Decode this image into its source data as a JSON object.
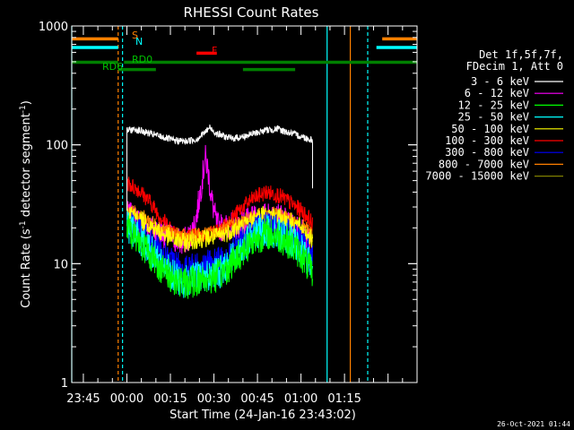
{
  "chart_data": {
    "type": "line",
    "title": "RHESSI Count Rates",
    "xlabel": "Start Time (24-Jan-16 23:43:02)",
    "ylabel_main": "Count Rate (s",
    "ylabel_sup1": "-1",
    "ylabel_mid": " detector segment",
    "ylabel_sup2": "-1",
    "ylabel_end": ")",
    "timestamp": "26-Oct-2021 01:44",
    "y_scale": "log",
    "ylim": [
      1,
      1000
    ],
    "xlim_minutes": [
      -19,
      100
    ],
    "x_tick_labels": [
      {
        "label": "23:45",
        "minute": -15
      },
      {
        "label": "00:00",
        "minute": 0
      },
      {
        "label": "00:15",
        "minute": 15
      },
      {
        "label": "00:30",
        "minute": 30
      },
      {
        "label": "00:45",
        "minute": 45
      },
      {
        "label": "01:00",
        "minute": 60
      },
      {
        "label": "01:15",
        "minute": 75
      }
    ],
    "y_tick_labels": [
      {
        "label": "1",
        "value": 1
      },
      {
        "label": "10",
        "value": 10
      },
      {
        "label": "100",
        "value": 100
      },
      {
        "label": "1000",
        "value": 1000
      }
    ],
    "legend_header": [
      "Det 1f,5f,7f,",
      "FDecim 1, Att 0"
    ],
    "legend_position": "right",
    "series": [
      {
        "name": "3 - 6 keV",
        "color": "#ffffff",
        "points": [
          [
            0,
            132
          ],
          [
            3,
            135
          ],
          [
            8,
            124
          ],
          [
            12,
            117
          ],
          [
            16,
            109
          ],
          [
            20,
            107
          ],
          [
            24,
            111
          ],
          [
            27,
            128
          ],
          [
            28.5,
            140
          ],
          [
            31,
            124
          ],
          [
            36,
            113
          ],
          [
            40,
            117
          ],
          [
            44,
            125
          ],
          [
            48,
            133
          ],
          [
            52,
            136
          ],
          [
            56,
            126
          ],
          [
            60,
            118
          ],
          [
            62,
            113
          ],
          [
            64,
            110
          ]
        ]
      },
      {
        "name": "6 - 12 keV",
        "color": "#ff00ff",
        "points": [
          [
            0,
            26
          ],
          [
            5,
            22
          ],
          [
            10,
            19
          ],
          [
            15,
            17
          ],
          [
            19,
            15
          ],
          [
            22,
            17
          ],
          [
            24,
            25
          ],
          [
            26,
            52
          ],
          [
            27,
            78
          ],
          [
            28,
            60
          ],
          [
            29,
            37
          ],
          [
            31,
            21
          ],
          [
            33,
            20
          ],
          [
            38,
            21
          ],
          [
            43,
            23
          ],
          [
            48,
            25
          ],
          [
            53,
            24
          ],
          [
            58,
            20
          ],
          [
            62,
            17
          ],
          [
            64,
            14
          ]
        ]
      },
      {
        "name": "12 - 25 keV",
        "color": "#00ff00",
        "points": [
          [
            0,
            20
          ],
          [
            4,
            16
          ],
          [
            8,
            12
          ],
          [
            12,
            9
          ],
          [
            16,
            7.5
          ],
          [
            20,
            6.8
          ],
          [
            24,
            7.2
          ],
          [
            28,
            7.5
          ],
          [
            32,
            8
          ],
          [
            36,
            10
          ],
          [
            40,
            13
          ],
          [
            44,
            16
          ],
          [
            48,
            18
          ],
          [
            52,
            17
          ],
          [
            56,
            15
          ],
          [
            60,
            12
          ],
          [
            63,
            9
          ],
          [
            64,
            8
          ]
        ]
      },
      {
        "name": "25 - 50 keV",
        "color": "#00ffff",
        "points": [
          [
            0,
            21
          ],
          [
            4,
            17
          ],
          [
            8,
            13
          ],
          [
            12,
            10
          ],
          [
            16,
            8
          ],
          [
            20,
            7
          ],
          [
            24,
            7.6
          ],
          [
            28,
            8
          ],
          [
            32,
            8.5
          ],
          [
            36,
            11
          ],
          [
            40,
            14
          ],
          [
            44,
            17
          ],
          [
            48,
            19
          ],
          [
            52,
            18
          ],
          [
            56,
            16
          ],
          [
            60,
            13
          ],
          [
            63,
            10
          ],
          [
            64,
            9
          ]
        ]
      },
      {
        "name": "50 - 100 keV",
        "color": "#ffff00",
        "points": [
          [
            0,
            27
          ],
          [
            4,
            24
          ],
          [
            8,
            21
          ],
          [
            12,
            18
          ],
          [
            16,
            16
          ],
          [
            20,
            15
          ],
          [
            24,
            16
          ],
          [
            28,
            16.5
          ],
          [
            32,
            17
          ],
          [
            36,
            19
          ],
          [
            40,
            21
          ],
          [
            44,
            24
          ],
          [
            48,
            26
          ],
          [
            52,
            25
          ],
          [
            56,
            23
          ],
          [
            60,
            20
          ],
          [
            63,
            17
          ],
          [
            64,
            15
          ]
        ]
      },
      {
        "name": "100 - 300 keV",
        "color": "#ff0000",
        "points": [
          [
            0,
            48
          ],
          [
            4,
            42
          ],
          [
            8,
            33
          ],
          [
            12,
            24
          ],
          [
            16,
            19
          ],
          [
            20,
            17
          ],
          [
            24,
            17
          ],
          [
            28,
            17.5
          ],
          [
            32,
            19
          ],
          [
            36,
            24
          ],
          [
            40,
            30
          ],
          [
            44,
            36
          ],
          [
            48,
            40
          ],
          [
            52,
            38
          ],
          [
            56,
            33
          ],
          [
            60,
            28
          ],
          [
            63,
            24
          ],
          [
            64,
            21
          ]
        ]
      },
      {
        "name": "300 - 800 keV",
        "color": "#0000ff",
        "points": [
          [
            0,
            23
          ],
          [
            4,
            19
          ],
          [
            8,
            15
          ],
          [
            12,
            12
          ],
          [
            16,
            10
          ],
          [
            20,
            9.2
          ],
          [
            24,
            9.6
          ],
          [
            28,
            10
          ],
          [
            32,
            10.6
          ],
          [
            36,
            13
          ],
          [
            40,
            16
          ],
          [
            44,
            19
          ],
          [
            48,
            21
          ],
          [
            52,
            20
          ],
          [
            56,
            18
          ],
          [
            60,
            15
          ],
          [
            63,
            12
          ],
          [
            64,
            11
          ]
        ]
      },
      {
        "name": "800 - 7000 keV",
        "color": "#ff8000",
        "points": [
          [
            0,
            29
          ],
          [
            4,
            26
          ],
          [
            8,
            23
          ],
          [
            12,
            20
          ],
          [
            16,
            18
          ],
          [
            20,
            17
          ],
          [
            24,
            17.5
          ],
          [
            28,
            18
          ],
          [
            32,
            19
          ],
          [
            36,
            21
          ],
          [
            40,
            23
          ],
          [
            44,
            25
          ],
          [
            48,
            27
          ],
          [
            52,
            26
          ],
          [
            56,
            24
          ],
          [
            60,
            21
          ],
          [
            63,
            19
          ],
          [
            64,
            17
          ]
        ]
      },
      {
        "name": "7000 - 15000 keV",
        "color": "#808000",
        "points": []
      }
    ],
    "flag_bars": [
      {
        "label": "S",
        "color": "#ff8000",
        "value": 780,
        "segments": [
          [
            -19,
            -3
          ],
          [
            88,
            100
          ]
        ]
      },
      {
        "label": "N",
        "color": "#00ffff",
        "value": 660,
        "segments": [
          [
            -19,
            -3
          ],
          [
            86,
            100
          ]
        ]
      },
      {
        "label": "RD0",
        "color": "#008000",
        "value": 495,
        "segments": [
          [
            -19,
            -3
          ],
          [
            -1,
            100
          ]
        ]
      },
      {
        "label": "RD6",
        "color": "#008000",
        "value": 430,
        "segments": [
          [
            -3,
            10
          ],
          [
            40,
            58
          ]
        ]
      },
      {
        "label": "F",
        "color": "#ff0000",
        "value": 590,
        "segments": [
          [
            24,
            31
          ]
        ]
      }
    ],
    "vertical_markers": [
      {
        "minute": -19,
        "color": "#00ffff",
        "style": "solid"
      },
      {
        "minute": -3,
        "color": "#ff8000",
        "style": "dashed"
      },
      {
        "minute": -1.5,
        "color": "#00ffff",
        "style": "dashed"
      },
      {
        "minute": 69,
        "color": "#00ffff",
        "style": "solid"
      },
      {
        "minute": 77,
        "color": "#ff8000",
        "style": "solid"
      },
      {
        "minute": 83,
        "color": "#00ffff",
        "style": "dashed"
      }
    ]
  }
}
